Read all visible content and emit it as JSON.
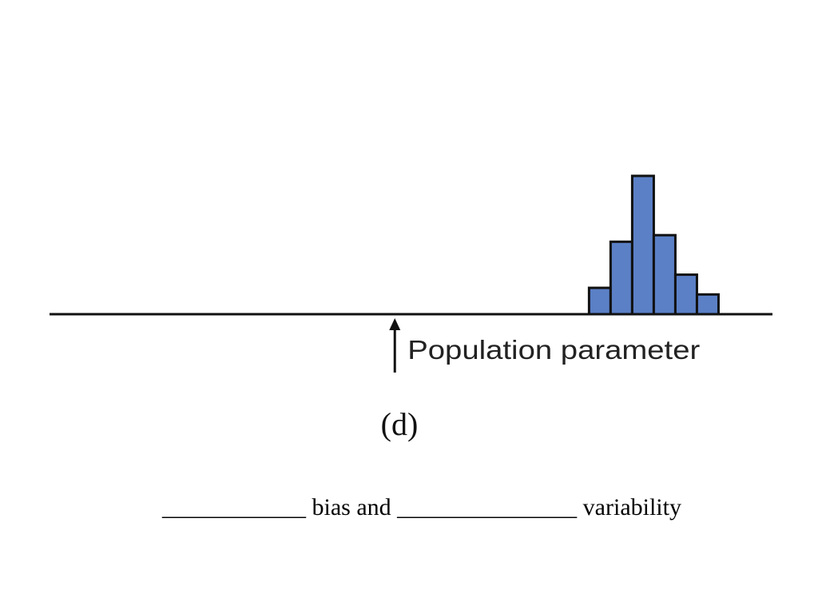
{
  "chart_data": {
    "type": "histogram",
    "bins": [
      25,
      26,
      27,
      28,
      29,
      30,
      31
    ],
    "values": [
      4,
      11,
      21,
      12,
      6,
      3
    ],
    "color": "#5b80c6",
    "xlim": [
      0,
      33.5
    ],
    "ylim": [
      0,
      21
    ],
    "parameter": {
      "value": 16,
      "label": "Population parameter"
    },
    "caption": "(d)",
    "question": "____________ bias and _______________ variability"
  }
}
